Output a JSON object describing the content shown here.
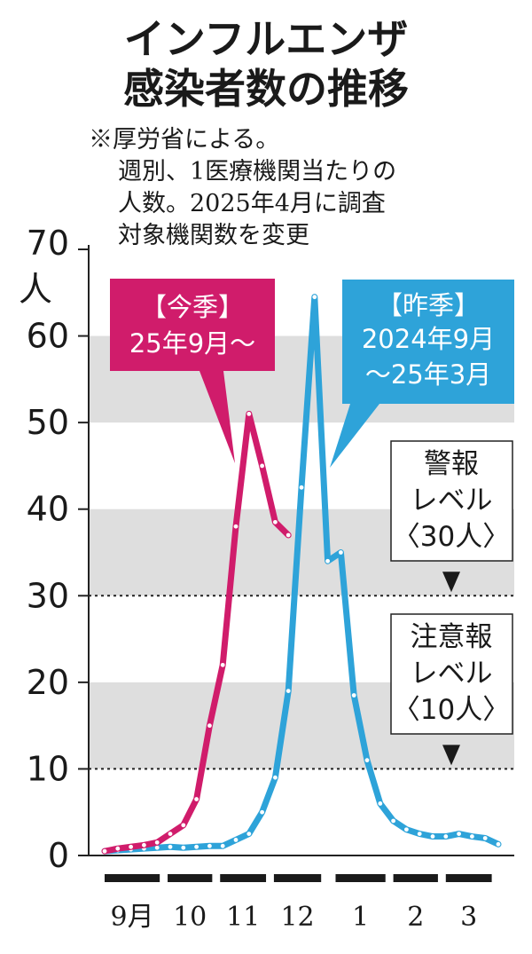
{
  "title_line1": "インフルエンザ",
  "title_line2": "感染者数の推移",
  "note_lines": [
    "※厚労省による。",
    "週別、1医療機関当たりの",
    "人数。2025年4月に調査",
    "対象機関数を変更"
  ],
  "colors": {
    "current": "#d01c6b",
    "previous": "#2ea3d9",
    "band": "#dedede",
    "dot": "#ffffff"
  },
  "chart_data": {
    "type": "line",
    "ylabel": "人",
    "ylim": [
      0,
      70
    ],
    "yticks": [
      "0",
      "10",
      "20",
      "30",
      "40",
      "50",
      "60",
      "70"
    ],
    "grid_bands": [
      [
        10,
        20
      ],
      [
        30,
        40
      ],
      [
        50,
        60
      ]
    ],
    "x_months": [
      "9月",
      "10",
      "11",
      "12",
      "1",
      "2",
      "3"
    ],
    "series": [
      {
        "name": "【今季】25年9月～",
        "label_lines": [
          "【今季】",
          "25年9月～"
        ],
        "x": [
          0,
          1,
          2,
          3,
          4,
          5,
          6,
          7,
          8,
          9,
          10,
          11,
          12,
          13,
          14
        ],
        "values": [
          0.5,
          0.8,
          1.0,
          1.2,
          1.5,
          2.5,
          3.5,
          6.5,
          15.0,
          22.0,
          38.0,
          51.0,
          45.0,
          38.5,
          37.0
        ]
      },
      {
        "name": "【昨季】2024年9月～25年3月",
        "label_lines": [
          "【昨季】",
          "2024年9月",
          "～25年3月"
        ],
        "x": [
          0,
          1,
          2,
          3,
          4,
          5,
          6,
          7,
          8,
          9,
          10,
          11,
          12,
          13,
          14,
          15,
          16,
          17,
          18,
          19,
          20,
          21,
          22,
          23,
          24,
          25,
          26,
          27,
          28,
          29,
          30
        ],
        "values": [
          0.5,
          0.6,
          0.7,
          0.8,
          0.9,
          1.0,
          0.9,
          1.0,
          1.1,
          1.1,
          1.8,
          2.5,
          5.0,
          9.0,
          19.0,
          42.5,
          64.5,
          34.0,
          35.0,
          18.5,
          11.0,
          6.0,
          4.0,
          3.0,
          2.5,
          2.2,
          2.2,
          2.5,
          2.2,
          2.0,
          1.3
        ]
      }
    ],
    "annotations": [
      {
        "value": 30,
        "label_lines": [
          "警報",
          "レベル",
          "〈30人〉"
        ]
      },
      {
        "value": 10,
        "label_lines": [
          "注意報",
          "レベル",
          "〈10人〉"
        ]
      }
    ]
  }
}
